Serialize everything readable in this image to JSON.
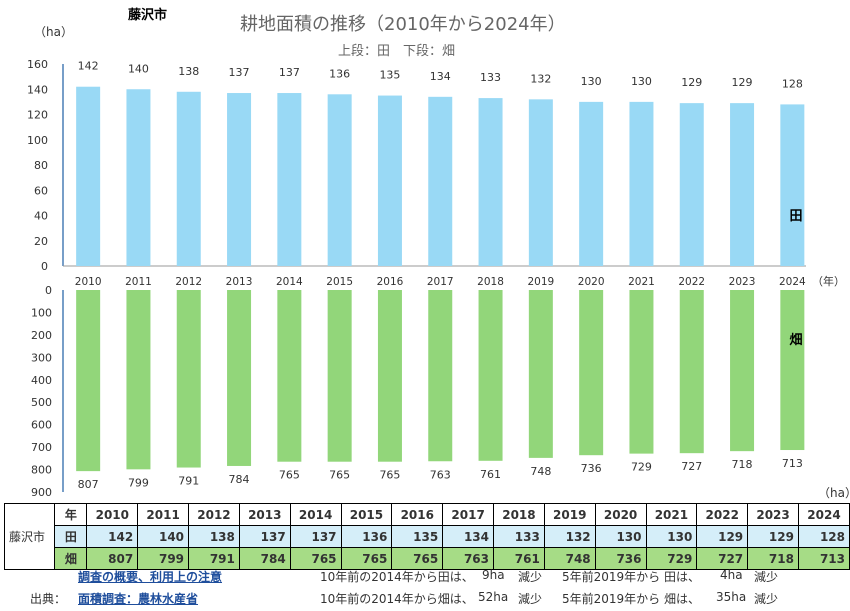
{
  "region": "藤沢市",
  "title": "耕地面積の推移（2010年から2024年）",
  "subtitle": "上段：田　下段：畑",
  "chart_data": {
    "type": "bar",
    "categories": [
      "2010",
      "2011",
      "2012",
      "2013",
      "2014",
      "2015",
      "2016",
      "2017",
      "2018",
      "2019",
      "2020",
      "2021",
      "2022",
      "2023",
      "2024"
    ],
    "x_unit": "（年）",
    "series": [
      {
        "name": "田",
        "values": [
          142,
          140,
          138,
          137,
          137,
          136,
          135,
          134,
          133,
          132,
          130,
          130,
          129,
          129,
          128
        ],
        "color": "#99d9f5",
        "ylim": [
          0,
          160
        ],
        "yticks": [
          0,
          20,
          40,
          60,
          80,
          100,
          120,
          140,
          160
        ],
        "unit": "（ha）"
      },
      {
        "name": "畑",
        "values": [
          807,
          799,
          791,
          784,
          765,
          765,
          765,
          763,
          761,
          748,
          736,
          729,
          727,
          718,
          713
        ],
        "color": "#92d67a",
        "ylim": [
          0,
          900
        ],
        "yticks": [
          0,
          100,
          200,
          300,
          400,
          500,
          600,
          700,
          800,
          900
        ],
        "unit": "（ha）"
      }
    ]
  },
  "table": {
    "row_label": "藤沢市",
    "year_header": "年",
    "rice_label": "田",
    "field_label": "畑"
  },
  "notes": {
    "overview_link": "調査の概要、利用上の注意",
    "source_label": "出典：",
    "source_link": "面積調査：農林水産省",
    "rice_10y_prefix": "10年前の2014年から田は、",
    "rice_10y_value": "9ha",
    "field_10y_prefix": "10年前の2014年から畑は、",
    "field_10y_value": "52ha",
    "change_word": "減少",
    "rice_5y_prefix": "5年前2019年から 田は、",
    "rice_5y_value": "4ha",
    "field_5y_prefix": "5年前2019年から 畑は、",
    "field_5y_value": "35ha"
  }
}
